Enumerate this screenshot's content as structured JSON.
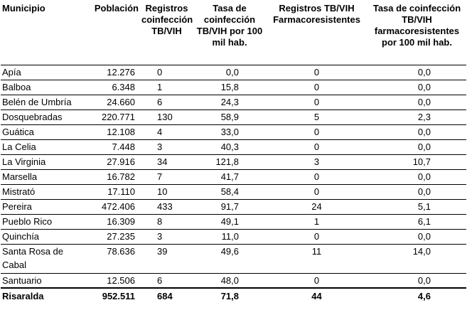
{
  "table": {
    "headers": [
      "Municipio",
      "Población",
      "Registros coinfección TB/VIH",
      "Tasa de coinfección TB/VIH por 100 mil hab.",
      "Registros TB/VIH Farmacoresistentes",
      "Tasa de coinfección TB/VIH farmacoresistentes por 100 mil hab."
    ],
    "rows": [
      [
        "Apía",
        "12.276",
        "0",
        "0,0",
        "0",
        "0,0"
      ],
      [
        "Balboa",
        "6.348",
        "1",
        "15,8",
        "0",
        "0,0"
      ],
      [
        "Belén de Umbría",
        "24.660",
        "6",
        "24,3",
        "0",
        "0,0"
      ],
      [
        "Dosquebradas",
        "220.771",
        "130",
        "58,9",
        "5",
        "2,3"
      ],
      [
        "Guática",
        "12.108",
        "4",
        "33,0",
        "0",
        "0,0"
      ],
      [
        "La Celia",
        "7.448",
        "3",
        "40,3",
        "0",
        "0,0"
      ],
      [
        "La Virginia",
        "27.916",
        "34",
        "121,8",
        "3",
        "10,7"
      ],
      [
        "Marsella",
        "16.782",
        "7",
        "41,7",
        "0",
        "0,0"
      ],
      [
        "Mistrató",
        "17.110",
        "10",
        "58,4",
        "0",
        "0,0"
      ],
      [
        "Pereira",
        "472.406",
        "433",
        "91,7",
        "24",
        "5,1"
      ],
      [
        "Pueblo Rico",
        "16.309",
        "8",
        "49,1",
        "1",
        "6,1"
      ],
      [
        "Quinchía",
        "27.235",
        "3",
        "11,0",
        "0",
        "0,0"
      ],
      [
        "Santa Rosa de Cabal",
        "78.636",
        "39",
        "49,6",
        "11",
        "14,0"
      ],
      [
        "Santuario",
        "12.506",
        "6",
        "48,0",
        "0",
        "0,0"
      ]
    ],
    "total": [
      "Risaralda",
      "952.511",
      "684",
      "71,8",
      "44",
      "4,6"
    ]
  }
}
